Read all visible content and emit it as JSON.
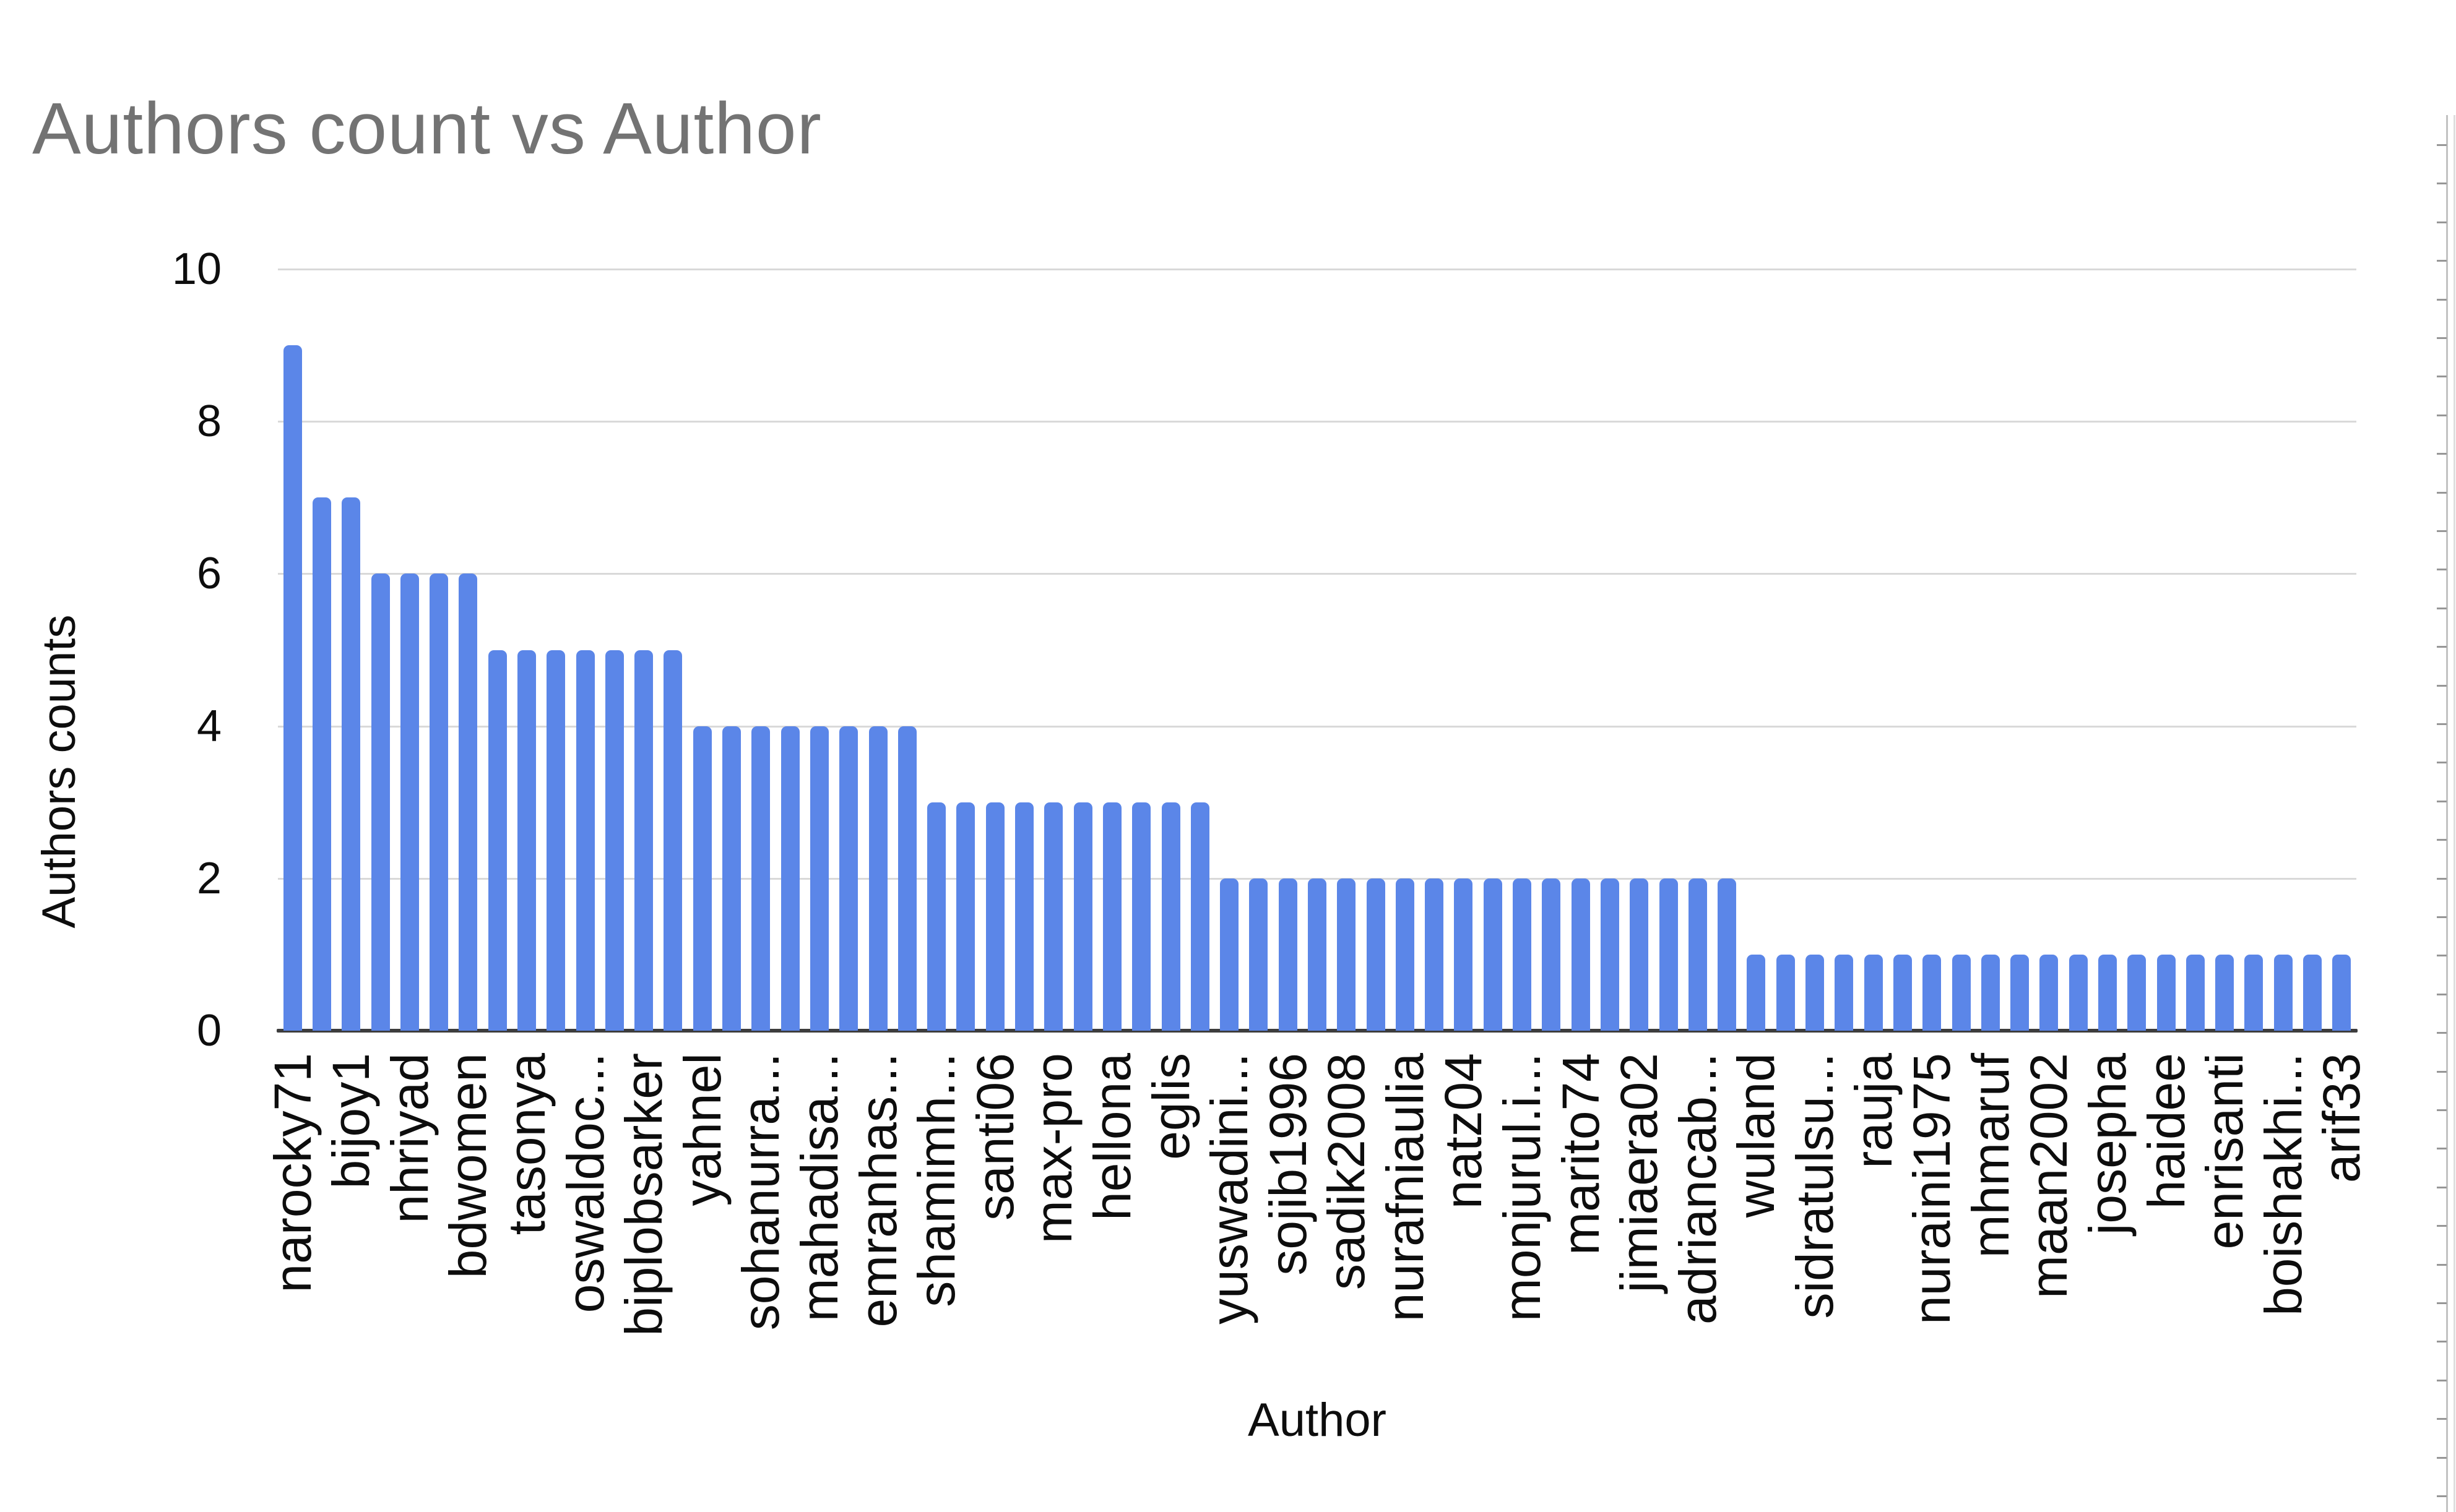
{
  "page": {
    "background": "#ffffff"
  },
  "chart_data": {
    "type": "bar",
    "title": "Authors count vs Author",
    "title_color": "#737373",
    "xlabel": "Author",
    "ylabel": "Authors counts",
    "ylim": [
      0,
      10
    ],
    "yticks": [
      0,
      2,
      4,
      6,
      8,
      10
    ],
    "grid": true,
    "legend_position": "none",
    "bar_color": "#5b86e8",
    "gridline_color": "#d9d9d9",
    "axis_line_color": "#3d3d3d",
    "tick_label_color": "#0d0d0d",
    "n_bars": 71,
    "values": [
      9,
      7,
      7,
      6,
      6,
      6,
      6,
      5,
      5,
      5,
      5,
      5,
      5,
      5,
      4,
      4,
      4,
      4,
      4,
      4,
      4,
      4,
      3,
      3,
      3,
      3,
      3,
      3,
      3,
      3,
      3,
      3,
      2,
      2,
      2,
      2,
      2,
      2,
      2,
      2,
      2,
      2,
      2,
      2,
      2,
      2,
      2,
      2,
      2,
      2,
      1,
      1,
      1,
      1,
      1,
      1,
      1,
      1,
      1,
      1,
      1,
      1,
      1,
      1,
      1,
      1,
      1,
      1,
      1,
      1,
      1
    ],
    "x_tick_label_every": 2,
    "x_tick_labels": [
      "narocky71",
      "bijoy1",
      "nhriyad",
      "bdwomen",
      "tasonya",
      "oswaldoc...",
      "biplobsarker",
      "yahnel",
      "sohanurra...",
      "mahadisa...",
      "emranhas...",
      "shamimh...",
      "santi06",
      "max-pro",
      "hellona",
      "eglis",
      "yuswadini...",
      "sojib1996",
      "sadik2008",
      "nurafniaulia",
      "natz04",
      "monjurul.i...",
      "marito74",
      "jimiaera02",
      "adriancab...",
      "wuland",
      "sidratulsu...",
      "rauja",
      "nuraini1975",
      "mhmaruf",
      "maan2002",
      "josepha",
      "haidee",
      "enrisanti",
      "boishakhi...",
      "arif33"
    ]
  }
}
